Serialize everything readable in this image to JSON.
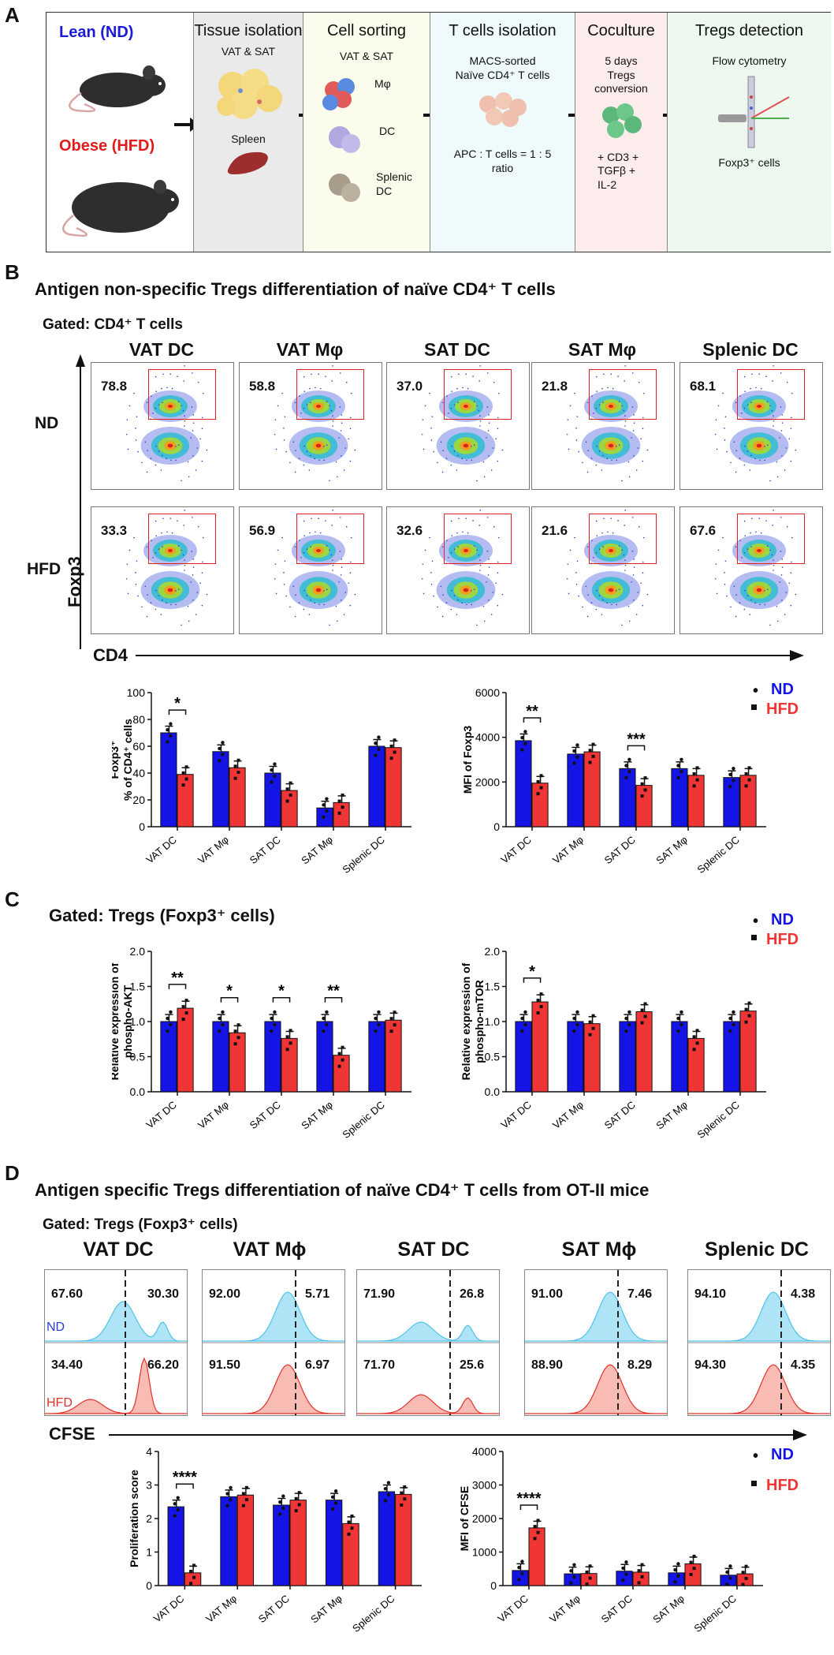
{
  "panelA": {
    "letter": "A",
    "lean": "Lean (ND)",
    "obese": "Obese (HFD)",
    "stages": [
      {
        "title": "Tissue isolation",
        "sub": "VAT & SAT",
        "extra": "Spleen"
      },
      {
        "title": "Cell sorting",
        "sub": "VAT & SAT",
        "items": [
          "Mφ",
          "DC",
          "Splenic DC"
        ]
      },
      {
        "title": "T cells isolation",
        "sub": "MACS-sorted Naïve CD4⁺ T cells",
        "extra": "APC : T cells = 1 : 5 ratio"
      },
      {
        "title": "Coculture",
        "sub": "5 days Tregs conversion",
        "extra": "+ CD3 + TGFβ + IL-2"
      },
      {
        "title": "Tregs detection",
        "sub": "Flow cytometry",
        "extra": "Foxp3⁺ cells"
      }
    ],
    "colors": {
      "lean": "#1a1adb",
      "obese": "#e01b1b"
    }
  },
  "panelB": {
    "letter": "B",
    "title": "Antigen non-specific Tregs differentiation of naïve CD4⁺ T cells",
    "gated": "Gated: CD4⁺ T cells",
    "columns": [
      "VAT DC",
      "VAT Mφ",
      "SAT DC",
      "SAT Mφ",
      "Splenic DC"
    ],
    "row_nd": "ND",
    "row_hfd": "HFD",
    "y_axis": "Foxp3",
    "x_axis": "CD4",
    "nd_values": [
      "78.8",
      "58.8",
      "37.0",
      "21.8",
      "68.1"
    ],
    "hfd_values": [
      "33.3",
      "56.9",
      "32.6",
      "21.6",
      "67.6"
    ]
  },
  "panelC": {
    "letter": "C",
    "gated": "Gated: Tregs (Foxp3⁺ cells)"
  },
  "panelD": {
    "letter": "D",
    "title": "Antigen specific Tregs differentiation of naïve CD4⁺ T cells from OT-II mice",
    "gated": "Gated: Tregs (Foxp3⁺ cells)",
    "columns": [
      "VAT DC",
      "VAT Mϕ",
      "SAT DC",
      "SAT Mϕ",
      "Splenic DC"
    ],
    "nd_left": [
      "67.60",
      "92.00",
      "71.90",
      "91.00",
      "94.10"
    ],
    "nd_right": [
      "30.30",
      "5.71",
      "26.8",
      "7.46",
      "4.38"
    ],
    "hfd_left": [
      "34.40",
      "91.50",
      "71.70",
      "88.90",
      "94.30"
    ],
    "hfd_right": [
      "66.20",
      "6.97",
      "25.6",
      "8.29",
      "4.35"
    ],
    "row_nd": "ND",
    "row_hfd": "HFD",
    "x_axis": "CFSE"
  },
  "legend": {
    "nd": "ND",
    "hfd": "HFD"
  },
  "colors": {
    "nd": "#1414e6",
    "hfd": "#ef3535",
    "nd_hist": "#4dc3ec",
    "hfd_hist": "#ef6a5a",
    "gate": "#e02020"
  },
  "chart_data": [
    {
      "id": "b1",
      "type": "bar",
      "title": "",
      "xlabel": "",
      "ylabel": "Foxp3⁺ % of CD4⁺ cells",
      "categories": [
        "VAT DC",
        "VAT Mφ",
        "SAT DC",
        "SAT Mφ",
        "Splenic DC"
      ],
      "ylim": [
        0,
        100
      ],
      "yticks": [
        0,
        20,
        40,
        60,
        80,
        100
      ],
      "series": [
        {
          "name": "ND",
          "values": [
            70,
            56,
            40,
            14,
            60
          ]
        },
        {
          "name": "HFD",
          "values": [
            39,
            44,
            27,
            18,
            59
          ]
        }
      ],
      "sig": [
        {
          "cat": 0,
          "label": "*"
        }
      ]
    },
    {
      "id": "b2",
      "type": "bar",
      "title": "",
      "xlabel": "",
      "ylabel": "MFI of Foxp3",
      "categories": [
        "VAT DC",
        "VAT Mφ",
        "SAT DC",
        "SAT Mφ",
        "Splenic DC"
      ],
      "ylim": [
        0,
        6000
      ],
      "yticks": [
        0,
        2000,
        4000,
        6000
      ],
      "series": [
        {
          "name": "ND",
          "values": [
            3850,
            3250,
            2600,
            2600,
            2200
          ]
        },
        {
          "name": "HFD",
          "values": [
            1950,
            3350,
            1850,
            2300,
            2300
          ]
        }
      ],
      "sig": [
        {
          "cat": 0,
          "label": "**"
        },
        {
          "cat": 2,
          "label": "***"
        }
      ]
    },
    {
      "id": "c1",
      "type": "bar",
      "title": "",
      "xlabel": "",
      "ylabel": "Relative expression of phospho-AKT",
      "categories": [
        "VAT DC",
        "VAT Mφ",
        "SAT DC",
        "SAT Mφ",
        "Splenic DC"
      ],
      "ylim": [
        0,
        2.0
      ],
      "yticks": [
        0.0,
        0.5,
        1.0,
        1.5,
        2.0
      ],
      "series": [
        {
          "name": "ND",
          "values": [
            1.0,
            1.0,
            1.0,
            1.0,
            1.0
          ]
        },
        {
          "name": "HFD",
          "values": [
            1.19,
            0.84,
            0.76,
            0.52,
            1.02
          ]
        }
      ],
      "sig": [
        {
          "cat": 0,
          "label": "**"
        },
        {
          "cat": 1,
          "label": "*"
        },
        {
          "cat": 2,
          "label": "*"
        },
        {
          "cat": 3,
          "label": "**"
        }
      ]
    },
    {
      "id": "c2",
      "type": "bar",
      "title": "",
      "xlabel": "",
      "ylabel": "Relative expression of phospho-mTOR",
      "categories": [
        "VAT DC",
        "VAT Mφ",
        "SAT DC",
        "SAT Mφ",
        "Splenic DC"
      ],
      "ylim": [
        0,
        2.0
      ],
      "yticks": [
        0.0,
        0.5,
        1.0,
        1.5,
        2.0
      ],
      "series": [
        {
          "name": "ND",
          "values": [
            1.0,
            1.0,
            1.0,
            1.0,
            1.0
          ]
        },
        {
          "name": "HFD",
          "values": [
            1.28,
            0.97,
            1.14,
            0.76,
            1.15
          ]
        }
      ],
      "sig": [
        {
          "cat": 0,
          "label": "*"
        }
      ]
    },
    {
      "id": "d1",
      "type": "bar",
      "title": "",
      "xlabel": "",
      "ylabel": "Proliferation score",
      "categories": [
        "VAT DC",
        "VAT Mφ",
        "SAT DC",
        "SAT Mφ",
        "Splenic DC"
      ],
      "ylim": [
        0,
        4
      ],
      "yticks": [
        0,
        1,
        2,
        3,
        4
      ],
      "series": [
        {
          "name": "ND",
          "values": [
            2.35,
            2.65,
            2.4,
            2.55,
            2.8
          ]
        },
        {
          "name": "HFD",
          "values": [
            0.38,
            2.7,
            2.55,
            1.85,
            2.72
          ]
        }
      ],
      "sig": [
        {
          "cat": 0,
          "label": "****"
        }
      ]
    },
    {
      "id": "d2",
      "type": "bar",
      "title": "",
      "xlabel": "",
      "ylabel": "MFI of CFSE",
      "categories": [
        "VAT DC",
        "VAT Mφ",
        "SAT DC",
        "SAT Mφ",
        "Splenic DC"
      ],
      "ylim": [
        0,
        4000
      ],
      "yticks": [
        0,
        1000,
        2000,
        3000,
        4000
      ],
      "series": [
        {
          "name": "ND",
          "values": [
            450,
            350,
            430,
            380,
            310
          ]
        },
        {
          "name": "HFD",
          "values": [
            1720,
            360,
            400,
            650,
            350
          ]
        }
      ],
      "sig": [
        {
          "cat": 0,
          "label": "****"
        }
      ]
    }
  ]
}
